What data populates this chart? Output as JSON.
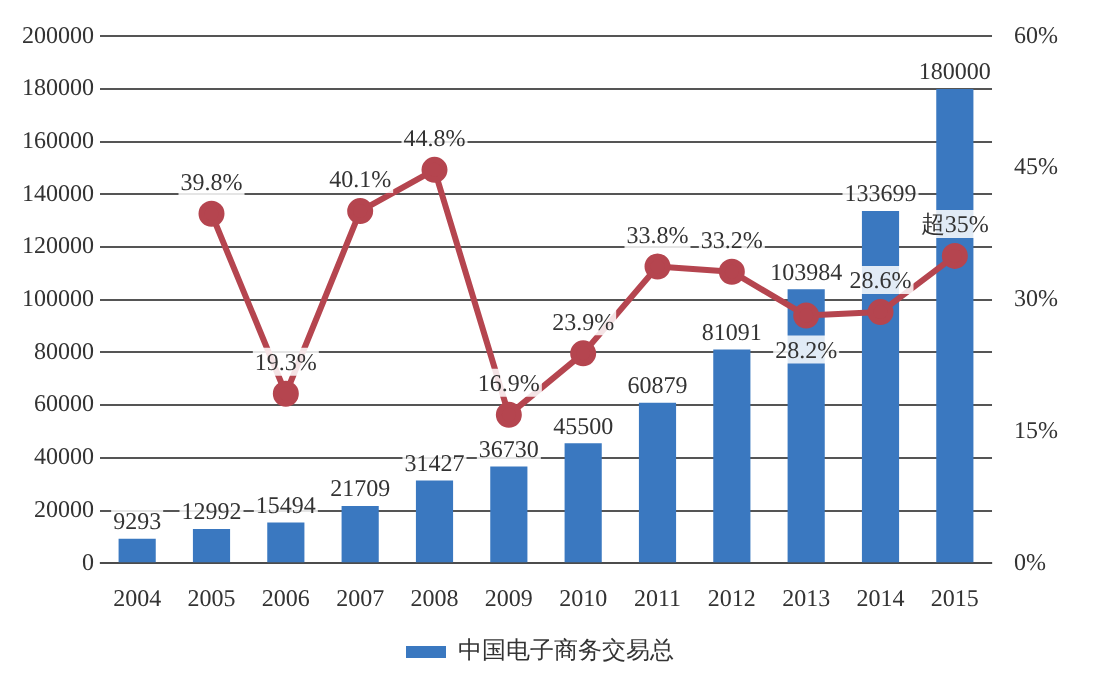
{
  "chart_data": {
    "type": "bar",
    "categories": [
      "2004",
      "2005",
      "2006",
      "2007",
      "2008",
      "2009",
      "2010",
      "2011",
      "2012",
      "2013",
      "2014",
      "2015"
    ],
    "series": [
      {
        "name": "中国电子商务交易总",
        "color": "#3a78c0",
        "values": [
          9293,
          12992,
          15494,
          21709,
          31427,
          36730,
          45500,
          60879,
          81091,
          103984,
          133699,
          180000
        ],
        "value_labels": [
          "9293",
          "12992",
          "15494",
          "21709",
          "31427",
          "36730",
          "45500",
          "60879",
          "81091",
          "103984",
          "133699",
          "180000"
        ]
      },
      {
        "type": "line",
        "axis": "y2",
        "color": "#b5454f",
        "values": [
          null,
          39.8,
          19.3,
          40.1,
          44.8,
          16.9,
          23.9,
          33.8,
          33.2,
          28.2,
          28.6,
          35
        ],
        "value_labels": [
          null,
          "39.8%",
          "19.3%",
          "40.1%",
          "44.8%",
          "16.9%",
          "23.9%",
          "33.8%",
          "33.2%",
          "28.2%",
          "28.6%",
          "超35%"
        ]
      }
    ],
    "ylim": [
      0,
      200000
    ],
    "yticks": [
      0,
      20000,
      40000,
      60000,
      80000,
      100000,
      120000,
      140000,
      160000,
      180000,
      200000
    ],
    "y2lim": [
      0,
      60
    ],
    "y2ticks": [
      {
        "value": 0,
        "label": "0%"
      },
      {
        "value": 15,
        "label": "15%"
      },
      {
        "value": 30,
        "label": "30%"
      },
      {
        "value": 45,
        "label": "45%"
      },
      {
        "value": 60,
        "label": "60%"
      }
    ],
    "grid": "y",
    "legend": "bottom",
    "marker": "circle",
    "line_style": "solid"
  }
}
